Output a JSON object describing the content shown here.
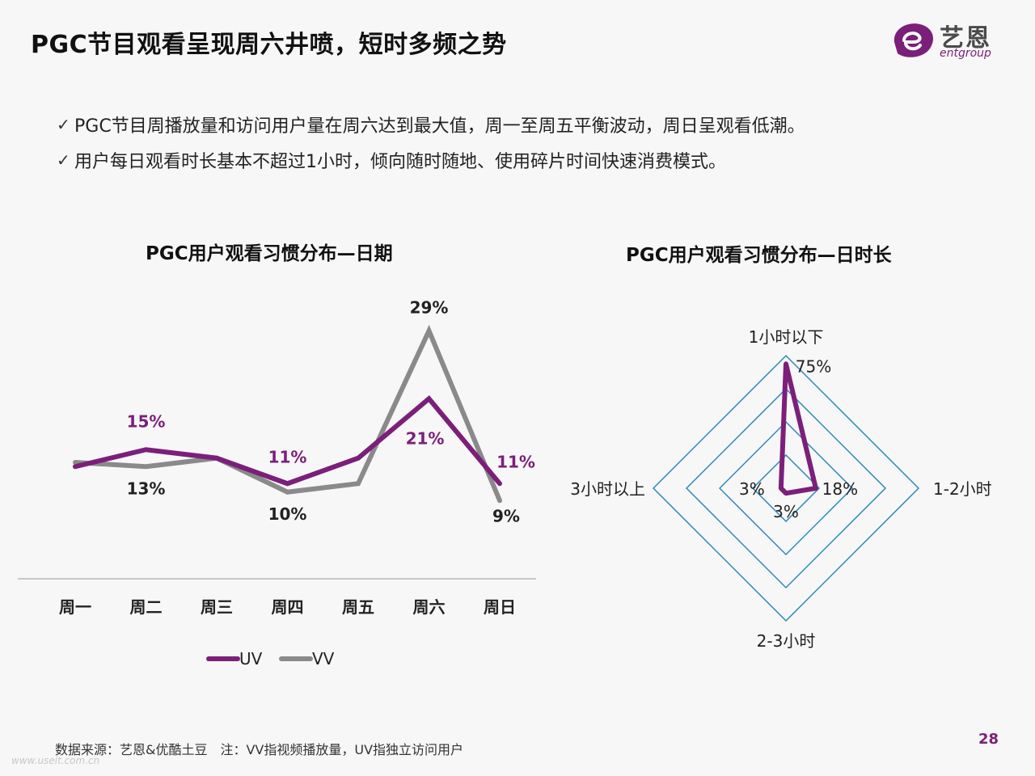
{
  "header": {
    "title": "PGC节目观看呈现周六井喷，短时多频之势"
  },
  "logo": {
    "cn": "艺恩",
    "en": "entgroup",
    "brand_color": "#7b1f7a"
  },
  "bullets": [
    "PGC节目周播放量和访问用户量在周六达到最大值，周一至周五平衡波动，周日呈观看低潮。",
    "用户每日观看时长基本不超过1小时，倾向随时随地、使用碎片时间快速消费模式。"
  ],
  "chart_data": [
    {
      "type": "line",
      "title": "PGC用户观看习惯分布—日期",
      "categories": [
        "周一",
        "周二",
        "周三",
        "周四",
        "周五",
        "周六",
        "周日"
      ],
      "series": [
        {
          "name": "UV",
          "color": "#7b1f7a",
          "values": [
            13,
            15,
            14,
            11,
            14,
            21,
            11
          ]
        },
        {
          "name": "VV",
          "color": "#8a8a8a",
          "values": [
            13.5,
            13,
            14,
            10,
            11,
            29,
            9
          ]
        }
      ],
      "data_labels": [
        {
          "text": "15%",
          "color": "#7b1f7a"
        },
        {
          "text": "13%",
          "color": "#222222"
        },
        {
          "text": "11%",
          "color": "#7b1f7a"
        },
        {
          "text": "10%",
          "color": "#222222"
        },
        {
          "text": "21%",
          "color": "#7b1f7a"
        },
        {
          "text": "29%",
          "color": "#222222"
        },
        {
          "text": "11%",
          "color": "#7b1f7a"
        },
        {
          "text": "9%",
          "color": "#222222"
        }
      ],
      "legend": "bottom"
    },
    {
      "type": "radar",
      "title": "PGC用户观看习惯分布—日时长",
      "axes": [
        "1小时以下",
        "1-2小时",
        "2-3小时",
        "3小时以上"
      ],
      "values": [
        75,
        18,
        3,
        3
      ],
      "value_labels": [
        "75%",
        "18%",
        "3%",
        "3%"
      ],
      "max": 80,
      "rings": 4,
      "series_color": "#7b1f7a",
      "grid_color": "#2a8ab8"
    }
  ],
  "footer": {
    "source": "数据来源：艺恩&优酷土豆　注：VV指视频播放量，UV指独立访问用户",
    "page": "28",
    "watermark": "www.useit.com.cn"
  }
}
